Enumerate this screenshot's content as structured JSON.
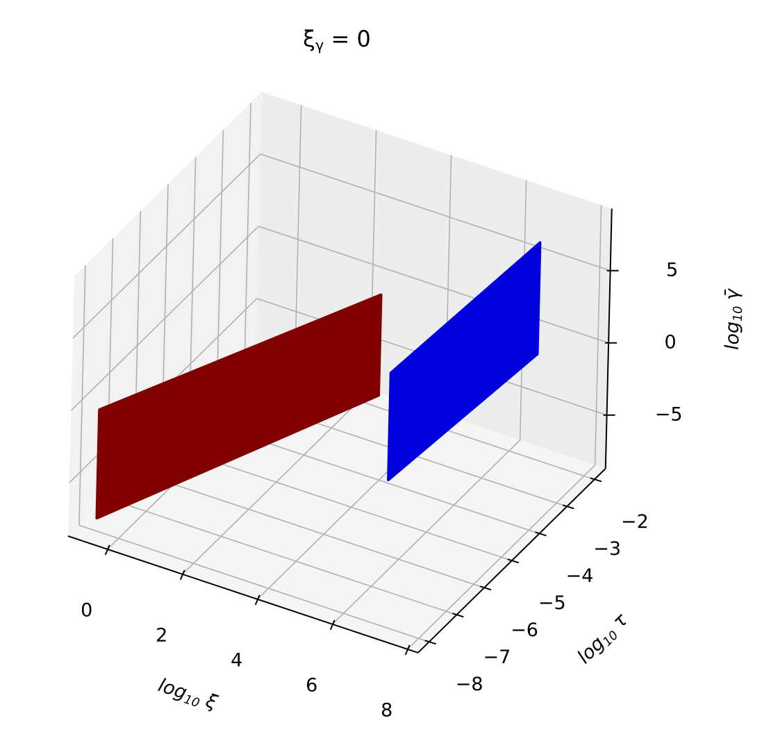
{
  "chart_data": {
    "type": "scatter3d",
    "title": "ξγ = 0",
    "xlabel": "log10 ξ",
    "ylabel": "log10 τ",
    "zlabel": "log10 γ̄",
    "xlim": [
      -1.05,
      8.28
    ],
    "ylim": [
      -8.4,
      -1.6
    ],
    "zlim": [
      -8.7,
      9.3
    ],
    "xticks": [
      0,
      2,
      4,
      6,
      8
    ],
    "yticks": [
      {
        "value": -8,
        "label": "−8"
      },
      {
        "value": -7,
        "label": "−7"
      },
      {
        "value": -6,
        "label": "−6"
      },
      {
        "value": -5,
        "label": "−5"
      },
      {
        "value": -4,
        "label": "−4"
      },
      {
        "value": -3,
        "label": "−3"
      },
      {
        "value": -2,
        "label": "−2"
      }
    ],
    "zticks": [
      {
        "value": -5,
        "label": "−5"
      },
      0,
      5
    ],
    "grid": true,
    "series": [
      {
        "color": "#800000",
        "x": [
          -0.3,
          -0.3,
          3.05,
          3.05
        ],
        "y": [
          -8.4,
          -8.4,
          -2.75,
          -2.75
        ],
        "z": [
          -6.8,
          0.7,
          0.96,
          -6.0
        ]
      },
      {
        "color": "#0000dd",
        "x": [
          7.1,
          7.1,
          7.4,
          7.4
        ],
        "y": [
          -8,
          -8,
          -3,
          -3
        ],
        "z": [
          1.5,
          8.9,
          8.8,
          1.1
        ]
      }
    ]
  }
}
